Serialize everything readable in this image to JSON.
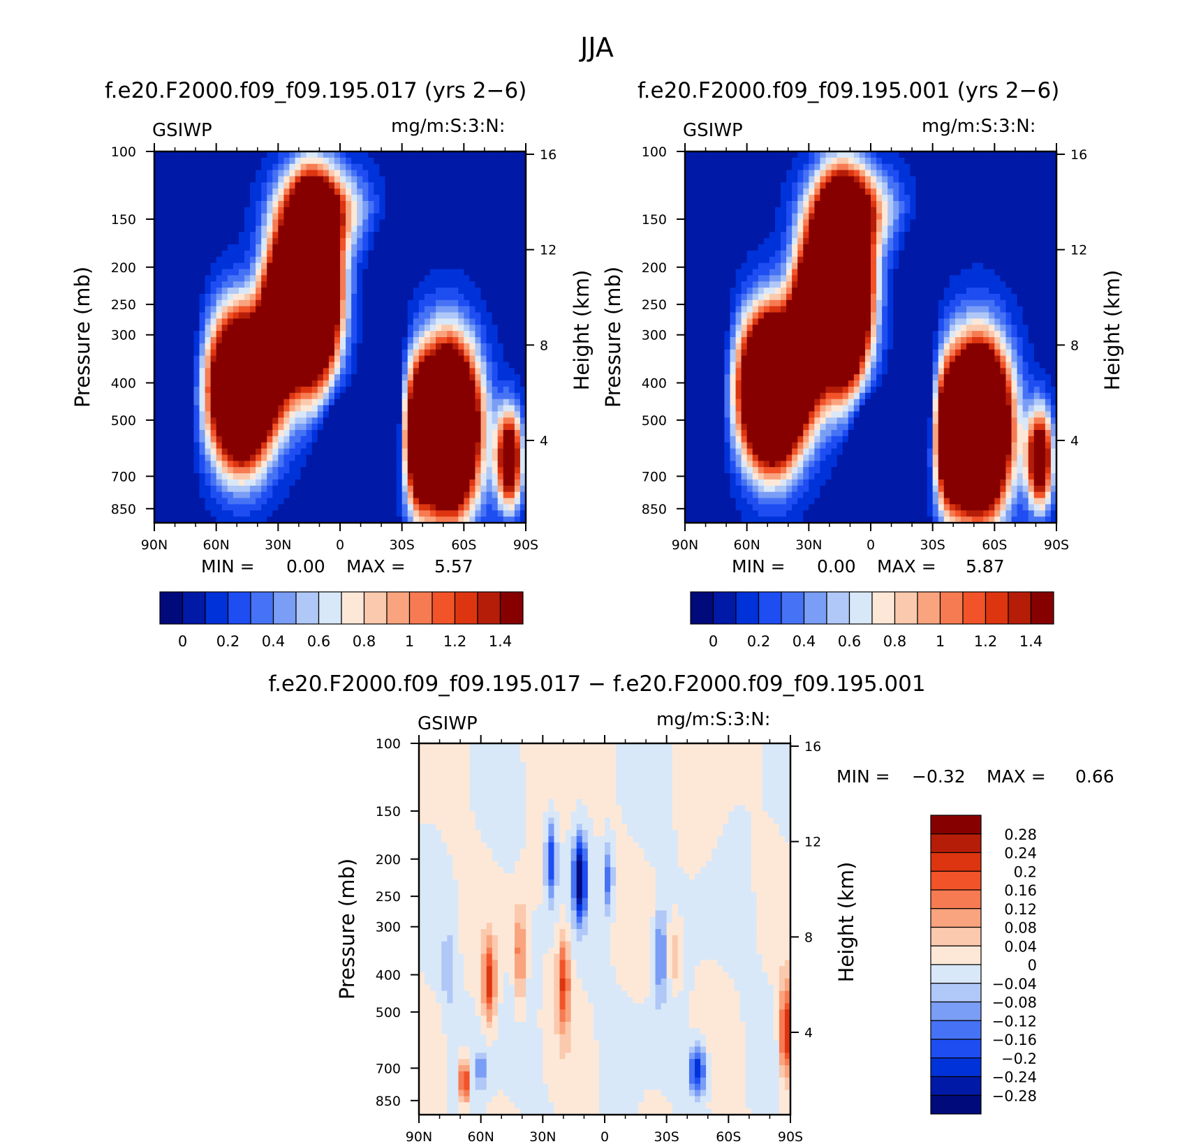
{
  "figure": {
    "title": "JJA",
    "diff_title": "f.e20.F2000.f09_f09.195.017 − f.e20.F2000.f09_f09.195.001"
  },
  "chart_data": [
    {
      "type": "heatmap",
      "title": "f.e20.F2000.f09_f09.195.017 (yrs 2−6)",
      "left_label": "GSIWP",
      "right_label": "mg/m:S:3:N:",
      "ylabel": "Pressure (mb)",
      "y2label": "Height (km)",
      "x_ticks": [
        "90N",
        "60N",
        "30N",
        "0",
        "30S",
        "60S",
        "90S"
      ],
      "xlim": [
        90,
        -90
      ],
      "y_ticks": [
        100,
        150,
        200,
        250,
        300,
        400,
        500,
        700,
        850
      ],
      "ylim": [
        100,
        925
      ],
      "y_scale": "log",
      "y2_ticks": [
        16,
        12,
        8,
        4
      ],
      "min_label": "MIN =",
      "min_value": "0.00",
      "max_label": "MAX =",
      "max_value": "5.57",
      "colorbar_ticks": [
        "0",
        "0.2",
        "0.4",
        "0.6",
        "0.8",
        "1",
        "1.2",
        "1.4"
      ],
      "colorbar_levels": [
        0,
        0.1,
        0.2,
        0.3,
        0.4,
        0.5,
        0.6,
        0.7,
        0.8,
        0.9,
        1.0,
        1.1,
        1.2,
        1.3,
        1.4
      ]
    },
    {
      "type": "heatmap",
      "title": "f.e20.F2000.f09_f09.195.001 (yrs 2−6)",
      "left_label": "GSIWP",
      "right_label": "mg/m:S:3:N:",
      "ylabel": "Pressure (mb)",
      "y2label": "Height (km)",
      "x_ticks": [
        "90N",
        "60N",
        "30N",
        "0",
        "30S",
        "60S",
        "90S"
      ],
      "xlim": [
        90,
        -90
      ],
      "y_ticks": [
        100,
        150,
        200,
        250,
        300,
        400,
        500,
        700,
        850
      ],
      "ylim": [
        100,
        925
      ],
      "y_scale": "log",
      "y2_ticks": [
        16,
        12,
        8,
        4
      ],
      "min_label": "MIN =",
      "min_value": "0.00",
      "max_label": "MAX =",
      "max_value": "5.87",
      "colorbar_ticks": [
        "0",
        "0.2",
        "0.4",
        "0.6",
        "0.8",
        "1",
        "1.2",
        "1.4"
      ],
      "colorbar_levels": [
        0,
        0.1,
        0.2,
        0.3,
        0.4,
        0.5,
        0.6,
        0.7,
        0.8,
        0.9,
        1.0,
        1.1,
        1.2,
        1.3,
        1.4
      ]
    },
    {
      "type": "heatmap",
      "title": "f.e20.F2000.f09_f09.195.017 − f.e20.F2000.f09_f09.195.001",
      "left_label": "GSIWP",
      "right_label": "mg/m:S:3:N:",
      "ylabel": "Pressure (mb)",
      "y2label": "Height (km)",
      "x_ticks": [
        "90N",
        "60N",
        "30N",
        "0",
        "30S",
        "60S",
        "90S"
      ],
      "xlim": [
        90,
        -90
      ],
      "y_ticks": [
        100,
        150,
        200,
        250,
        300,
        400,
        500,
        700,
        850
      ],
      "ylim": [
        100,
        925
      ],
      "y_scale": "log",
      "y2_ticks": [
        16,
        12,
        8,
        4
      ],
      "min_label": "MIN =",
      "min_value": "−0.32",
      "max_label": "MAX =",
      "max_value": "0.66",
      "colorbar_ticks": [
        "0.28",
        "0.24",
        "0.2",
        "0.16",
        "0.12",
        "0.08",
        "0.04",
        "0",
        "−0.04",
        "−0.08",
        "−0.12",
        "−0.16",
        "−0.2",
        "−0.24",
        "−0.28"
      ]
    }
  ],
  "colors": {
    "abs_palette": [
      "#000a7a",
      "#0019a6",
      "#0032d9",
      "#1e4df2",
      "#4672f5",
      "#7a9df5",
      "#b0c8f7",
      "#d9e8f8",
      "#fde8d8",
      "#fbc9ad",
      "#f9a47e",
      "#f77b52",
      "#f25329",
      "#dc3510",
      "#b51d08",
      "#870000"
    ],
    "diff_palette": [
      "#000a7a",
      "#0019a6",
      "#0032d9",
      "#1e4df2",
      "#4672f5",
      "#7a9df5",
      "#b0c8f7",
      "#d9e8f8",
      "#fde8d8",
      "#fbc9ad",
      "#f9a47e",
      "#f77b52",
      "#f25329",
      "#dc3510",
      "#b51d08",
      "#870000"
    ]
  }
}
